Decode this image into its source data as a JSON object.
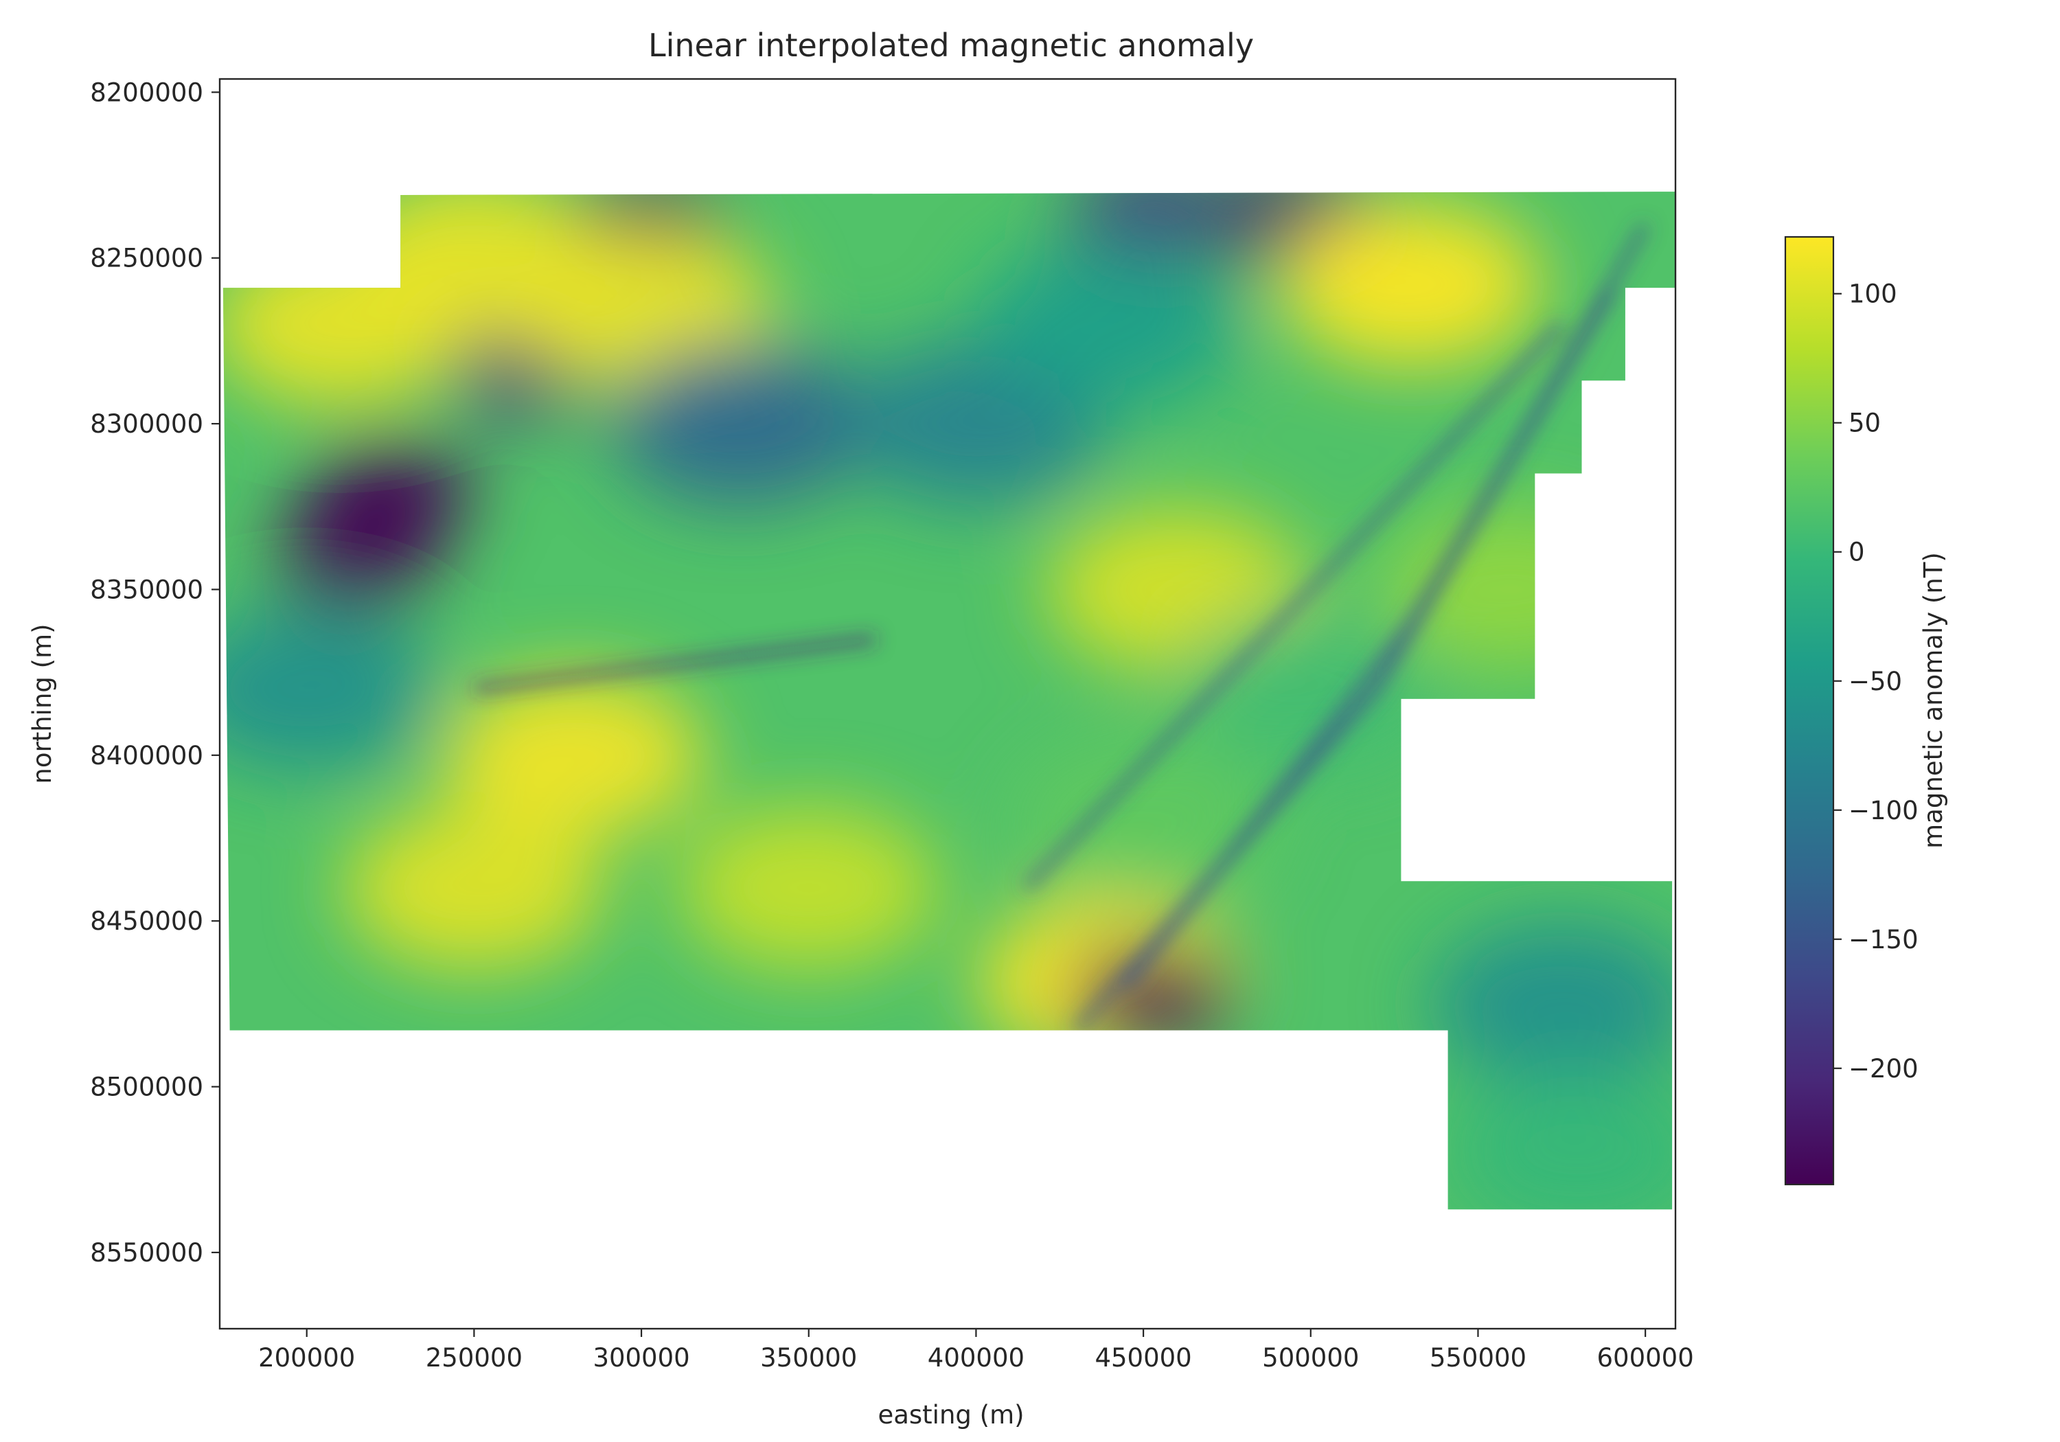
{
  "chart_data": {
    "type": "heatmap",
    "title": "Linear interpolated magnetic anomaly",
    "xlabel": "easting (m)",
    "ylabel": "northing (m)",
    "xlim": [
      174000,
      609000
    ],
    "ylim": [
      8573000,
      8196000
    ],
    "y_axis_inverted": true,
    "grid": false,
    "colormap": "viridis",
    "x_ticks": [
      200000,
      250000,
      300000,
      350000,
      400000,
      450000,
      500000,
      550000,
      600000
    ],
    "y_ticks": [
      8200000,
      8250000,
      8300000,
      8350000,
      8400000,
      8450000,
      8500000,
      8550000
    ],
    "colorbar": {
      "label": "magnetic anomaly (nT)",
      "range": [
        -245,
        122
      ],
      "ticks": [
        100,
        50,
        0,
        -50,
        -100,
        -150,
        -200
      ],
      "tick_labels": [
        "100",
        "50",
        "0",
        "−50",
        "−100",
        "−150",
        "−200"
      ]
    },
    "survey_outline": [
      [
        228000,
        8231000
      ],
      [
        609000,
        8230000
      ],
      [
        609000,
        8259000
      ],
      [
        594000,
        8259000
      ],
      [
        594000,
        8287000
      ],
      [
        581000,
        8287000
      ],
      [
        581000,
        8315000
      ],
      [
        567000,
        8315000
      ],
      [
        567000,
        8383000
      ],
      [
        527000,
        8383000
      ],
      [
        527000,
        8438000
      ],
      [
        608000,
        8438000
      ],
      [
        608000,
        8537000
      ],
      [
        541000,
        8537000
      ],
      [
        541000,
        8483000
      ],
      [
        177000,
        8483000
      ],
      [
        175000,
        8259000
      ],
      [
        228000,
        8259000
      ]
    ],
    "anomalies": [
      {
        "x": 225000,
        "y": 8320000,
        "value": -245
      },
      {
        "x": 215000,
        "y": 8340000,
        "value": -245
      },
      {
        "x": 300000,
        "y": 8240000,
        "value": -230
      },
      {
        "x": 498000,
        "y": 8238000,
        "value": -220
      },
      {
        "x": 452000,
        "y": 8237000,
        "value": -180
      },
      {
        "x": 265000,
        "y": 8282000,
        "value": -200
      },
      {
        "x": 210000,
        "y": 8270000,
        "value": 110
      },
      {
        "x": 250000,
        "y": 8250000,
        "value": 110
      },
      {
        "x": 300000,
        "y": 8265000,
        "value": 110
      },
      {
        "x": 530000,
        "y": 8258000,
        "value": 122
      },
      {
        "x": 280000,
        "y": 8400000,
        "value": 115
      },
      {
        "x": 250000,
        "y": 8440000,
        "value": 105
      },
      {
        "x": 440000,
        "y": 8468000,
        "value": 122
      },
      {
        "x": 460000,
        "y": 8350000,
        "value": 100
      },
      {
        "x": 350000,
        "y": 8440000,
        "value": 90
      },
      {
        "x": 330000,
        "y": 8300000,
        "value": -120
      },
      {
        "x": 400000,
        "y": 8300000,
        "value": -80
      },
      {
        "x": 200000,
        "y": 8380000,
        "value": -60
      },
      {
        "x": 440000,
        "y": 8270000,
        "value": -40
      },
      {
        "x": 575000,
        "y": 8475000,
        "value": -60
      },
      {
        "x": 580000,
        "y": 8520000,
        "value": 0
      },
      {
        "x": 500000,
        "y": 8380000,
        "value": 10
      },
      {
        "x": 560000,
        "y": 8350000,
        "value": 60
      },
      {
        "x": 450000,
        "y": 8420000,
        "value": 30
      },
      {
        "x": 452000,
        "y": 8473000,
        "value": -245
      }
    ]
  }
}
